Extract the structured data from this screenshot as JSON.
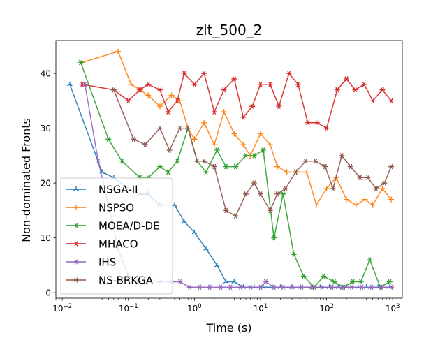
{
  "chart_data": {
    "type": "line",
    "title": "zlt_500_2",
    "xlabel": "Time (s)",
    "ylabel": "Non-dominated Fronts",
    "xscale": "log",
    "xlim": [
      0.008,
      1400
    ],
    "ylim": [
      -1,
      46
    ],
    "xticks": [
      {
        "value": 0.01,
        "base": "10",
        "exp": "−2"
      },
      {
        "value": 0.1,
        "base": "10",
        "exp": "−1"
      },
      {
        "value": 1,
        "base": "10",
        "exp": "0"
      },
      {
        "value": 10,
        "base": "10",
        "exp": "1"
      },
      {
        "value": 100,
        "base": "10",
        "exp": "2"
      },
      {
        "value": 1000,
        "base": "10",
        "exp": "3"
      }
    ],
    "yticks": [
      "0",
      "10",
      "20",
      "30",
      "40"
    ],
    "grid": false,
    "legend_position": "lower-left",
    "series": [
      {
        "name": "NSGA-II",
        "color": "#1f77b4",
        "marker": "tri",
        "points": [
          [
            0.013,
            38
          ],
          [
            0.04,
            22
          ],
          [
            0.06,
            21
          ],
          [
            0.1,
            19
          ],
          [
            0.15,
            18
          ],
          [
            0.2,
            18
          ],
          [
            0.3,
            16
          ],
          [
            0.5,
            16
          ],
          [
            0.7,
            13
          ],
          [
            1.0,
            11
          ],
          [
            1.5,
            8
          ],
          [
            2.2,
            5
          ],
          [
            3,
            2
          ],
          [
            4,
            2
          ],
          [
            5.5,
            1
          ],
          [
            8,
            1
          ],
          [
            11,
            1
          ],
          [
            15,
            1
          ],
          [
            20,
            1
          ],
          [
            30,
            1
          ],
          [
            40,
            1
          ],
          [
            60,
            1
          ],
          [
            80,
            1
          ],
          [
            110,
            1
          ],
          [
            150,
            1
          ],
          [
            200,
            1
          ],
          [
            300,
            1
          ],
          [
            400,
            1
          ],
          [
            600,
            1
          ],
          [
            900,
            1
          ]
        ]
      },
      {
        "name": "NSPSO",
        "color": "#ff7f0e",
        "marker": "plus",
        "points": [
          [
            0.02,
            42
          ],
          [
            0.07,
            44
          ],
          [
            0.11,
            38
          ],
          [
            0.15,
            37
          ],
          [
            0.2,
            36
          ],
          [
            0.3,
            34
          ],
          [
            0.45,
            36
          ],
          [
            0.6,
            35
          ],
          [
            0.8,
            30
          ],
          [
            1.0,
            28
          ],
          [
            1.4,
            31
          ],
          [
            2.0,
            27
          ],
          [
            2.8,
            33
          ],
          [
            4,
            29
          ],
          [
            5.5,
            27
          ],
          [
            7,
            25
          ],
          [
            10,
            29
          ],
          [
            14,
            27
          ],
          [
            18,
            23
          ],
          [
            25,
            22
          ],
          [
            35,
            22
          ],
          [
            50,
            22
          ],
          [
            70,
            16
          ],
          [
            100,
            19
          ],
          [
            140,
            21
          ],
          [
            200,
            17
          ],
          [
            280,
            16
          ],
          [
            380,
            17
          ],
          [
            500,
            16
          ],
          [
            700,
            19
          ],
          [
            950,
            17
          ]
        ]
      },
      {
        "name": "MOEA/D-DE",
        "color": "#2ca02c",
        "marker": "star",
        "points": [
          [
            0.019,
            42
          ],
          [
            0.05,
            28
          ],
          [
            0.08,
            24
          ],
          [
            0.15,
            21
          ],
          [
            0.2,
            21
          ],
          [
            0.3,
            23
          ],
          [
            0.4,
            22
          ],
          [
            0.55,
            24
          ],
          [
            0.8,
            30
          ],
          [
            1.1,
            24
          ],
          [
            1.5,
            22
          ],
          [
            2.2,
            26
          ],
          [
            3,
            23
          ],
          [
            4.2,
            23
          ],
          [
            6,
            25
          ],
          [
            8,
            25
          ],
          [
            11,
            26
          ],
          [
            16,
            10
          ],
          [
            22,
            18
          ],
          [
            32,
            7
          ],
          [
            45,
            3
          ],
          [
            65,
            1
          ],
          [
            90,
            3
          ],
          [
            130,
            2
          ],
          [
            180,
            1
          ],
          [
            250,
            2
          ],
          [
            330,
            2
          ],
          [
            450,
            6
          ],
          [
            650,
            1
          ],
          [
            900,
            2
          ]
        ]
      },
      {
        "name": "MHACO",
        "color": "#d62728",
        "marker": "star",
        "points": [
          [
            0.02,
            38
          ],
          [
            0.06,
            37
          ],
          [
            0.1,
            35
          ],
          [
            0.15,
            37
          ],
          [
            0.2,
            38
          ],
          [
            0.3,
            37
          ],
          [
            0.4,
            33
          ],
          [
            0.55,
            35
          ],
          [
            0.7,
            40
          ],
          [
            1.0,
            38
          ],
          [
            1.4,
            40
          ],
          [
            2.0,
            33
          ],
          [
            2.8,
            37
          ],
          [
            4,
            39
          ],
          [
            5.5,
            32
          ],
          [
            7.5,
            34
          ],
          [
            10,
            38
          ],
          [
            14,
            38
          ],
          [
            19,
            34
          ],
          [
            27,
            40
          ],
          [
            37,
            38
          ],
          [
            52,
            31
          ],
          [
            72,
            31
          ],
          [
            100,
            30
          ],
          [
            145,
            37
          ],
          [
            200,
            39
          ],
          [
            270,
            37
          ],
          [
            370,
            38
          ],
          [
            500,
            35
          ],
          [
            700,
            37
          ],
          [
            950,
            35
          ]
        ]
      },
      {
        "name": "IHS",
        "color": "#9467bd",
        "marker": "star",
        "points": [
          [
            0.022,
            38
          ],
          [
            0.035,
            24
          ],
          [
            0.05,
            16
          ],
          [
            0.07,
            8
          ],
          [
            0.1,
            3
          ],
          [
            0.14,
            2
          ],
          [
            0.2,
            2
          ],
          [
            0.3,
            2
          ],
          [
            0.45,
            2
          ],
          [
            0.6,
            2
          ],
          [
            0.85,
            1
          ],
          [
            1.2,
            1
          ],
          [
            1.7,
            1
          ],
          [
            2.5,
            1
          ],
          [
            3.5,
            1
          ],
          [
            5,
            1
          ],
          [
            7,
            1
          ],
          [
            10,
            1
          ],
          [
            12,
            2
          ],
          [
            16,
            1
          ],
          [
            22,
            1
          ],
          [
            30,
            1
          ],
          [
            42,
            1
          ],
          [
            60,
            1
          ],
          [
            85,
            1
          ],
          [
            120,
            1
          ],
          [
            170,
            1
          ],
          [
            240,
            1
          ],
          [
            340,
            1
          ],
          [
            480,
            1
          ],
          [
            680,
            1
          ],
          [
            950,
            1
          ]
        ]
      },
      {
        "name": "NS-BRKGA",
        "color": "#8c564b",
        "marker": "star",
        "points": [
          [
            0.06,
            37
          ],
          [
            0.12,
            28
          ],
          [
            0.18,
            27
          ],
          [
            0.3,
            30
          ],
          [
            0.42,
            26
          ],
          [
            0.6,
            30
          ],
          [
            0.8,
            30
          ],
          [
            1.1,
            24
          ],
          [
            1.4,
            24
          ],
          [
            2.0,
            23
          ],
          [
            3,
            15
          ],
          [
            4.2,
            14
          ],
          [
            6,
            18
          ],
          [
            8,
            20
          ],
          [
            10,
            18
          ],
          [
            14,
            15
          ],
          [
            18,
            18
          ],
          [
            24,
            19
          ],
          [
            34,
            22
          ],
          [
            48,
            24
          ],
          [
            68,
            24
          ],
          [
            95,
            23
          ],
          [
            125,
            19
          ],
          [
            170,
            25
          ],
          [
            230,
            23
          ],
          [
            320,
            21
          ],
          [
            420,
            21
          ],
          [
            560,
            19
          ],
          [
            750,
            20
          ],
          [
            950,
            23
          ]
        ]
      }
    ]
  }
}
